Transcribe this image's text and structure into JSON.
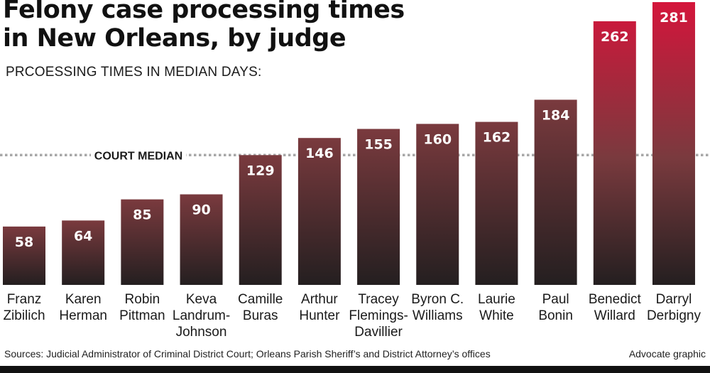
{
  "title": [
    "Felony case processing times",
    "in New Orleans, by judge"
  ],
  "subtitle": "PRCOESSING TIMES IN MEDIAN DAYS:",
  "source": "Sources: Judicial Administrator of Criminal District Court; Orleans Parish Sheriff’s and District Attorney’s offices",
  "credit": "Advocate graphic",
  "colors": {
    "bar_bottom": "#241f20",
    "bar_mid": "#7a3a3e",
    "bar_top_red": "#d4153b",
    "median_line": "#a7a7a7"
  },
  "chart_data": {
    "type": "bar",
    "title": "Felony case processing times in New Orleans, by judge",
    "ylabel": "PRCOESSING TIMES IN MEDIAN DAYS:",
    "ylim": [
      0,
      281
    ],
    "categories": [
      [
        "Franz",
        "Zibilich"
      ],
      [
        "Karen",
        "Herman"
      ],
      [
        "Robin",
        "Pittman"
      ],
      [
        "Keva",
        "Landrum-",
        "Johnson"
      ],
      [
        "Camille",
        "Buras"
      ],
      [
        "Arthur",
        "Hunter"
      ],
      [
        "Tracey",
        "Flemings-",
        "Davillier"
      ],
      [
        "Byron C.",
        "Williams"
      ],
      [
        "Laurie",
        "White"
      ],
      [
        "Paul",
        "Bonin"
      ],
      [
        "Benedict",
        "Willard"
      ],
      [
        "Darryl",
        "Derbigny"
      ]
    ],
    "values": [
      58,
      64,
      85,
      90,
      129,
      146,
      155,
      160,
      162,
      184,
      262,
      281
    ],
    "reference_line": {
      "label": "COURT MEDIAN",
      "value": 129
    }
  }
}
